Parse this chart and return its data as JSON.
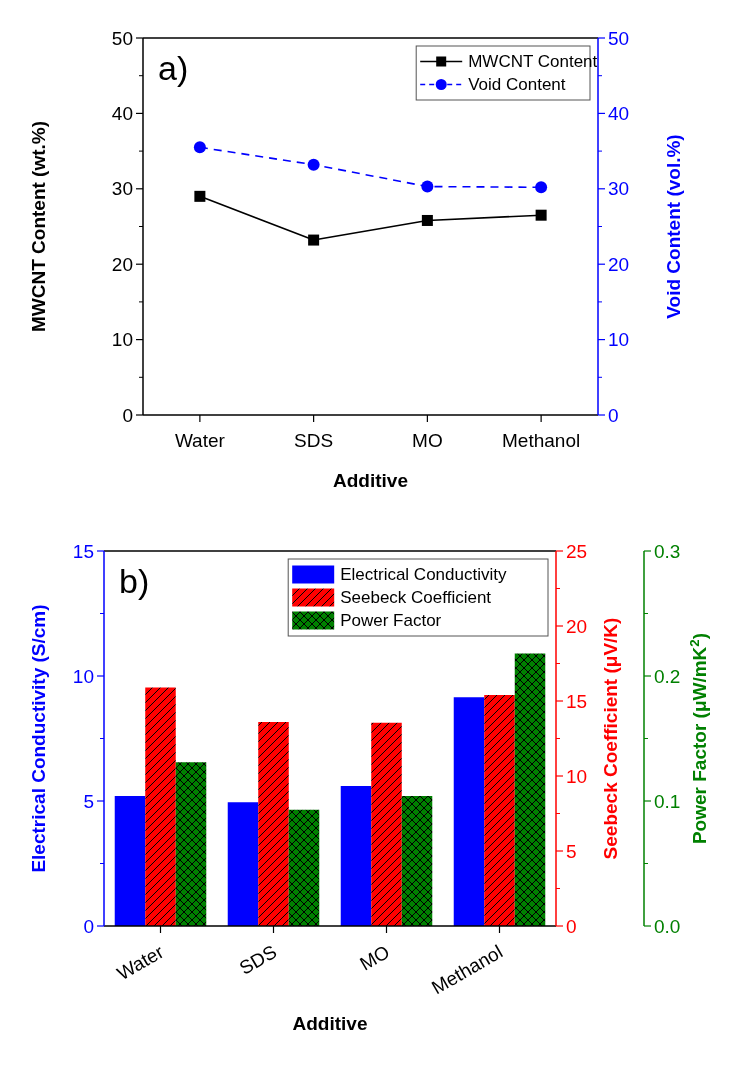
{
  "chart_data": [
    {
      "type": "line",
      "title": "a)",
      "categories": [
        "Water",
        "SDS",
        "MO",
        "Methanol"
      ],
      "xlabel": "Additive",
      "ylabel": "MWCNT Content (wt.%)",
      "y2label": "Void Content (vol.%)",
      "ylim": [
        0,
        50
      ],
      "yticks": [
        0,
        10,
        20,
        30,
        40,
        50
      ],
      "y2lim": [
        0,
        50
      ],
      "y2ticks": [
        0,
        10,
        20,
        30,
        40,
        50
      ],
      "legend": "top right",
      "series": [
        {
          "name": "MWCNT Content",
          "color": "#000000",
          "values": [
            29.0,
            23.2,
            25.8,
            26.5
          ],
          "marker": "square",
          "line_style": "solid"
        },
        {
          "name": "Void Content",
          "color": "#0000ff",
          "values": [
            35.5,
            33.2,
            30.3,
            30.2
          ],
          "marker": "circle",
          "line_style": "dashed",
          "axis": "y2"
        }
      ]
    },
    {
      "type": "bar",
      "title": "b)",
      "categories": [
        "Water",
        "SDS",
        "MO",
        "Methanol"
      ],
      "xlabel": "Additive",
      "ylabel": "Electrical Conductivity (S/cm)",
      "y2label": "Seebeck Coefficient (μV/K)",
      "y3label": "Power Factor (μW/mK$^{2}$)",
      "ylim": [
        0,
        15
      ],
      "yticks": [
        0,
        5,
        10,
        15
      ],
      "y2lim": [
        0,
        25
      ],
      "y2ticks": [
        0,
        5,
        10,
        15,
        20,
        25
      ],
      "y3lim": [
        0,
        0.3
      ],
      "y3ticks": [
        {
          "value": 0,
          "label": "0.0"
        },
        {
          "value": 0.1,
          "label": "0.1"
        },
        {
          "value": 0.2,
          "label": "0.2"
        },
        {
          "value": 0.3,
          "label": "0.3"
        }
      ],
      "legend": "top right",
      "series": [
        {
          "name": "Electrical Conductivity",
          "color": "#0000ff",
          "values": [
            5.2,
            4.95,
            5.6,
            9.15
          ]
        },
        {
          "name": "Seebeck Coefficient",
          "color": "#ff0000",
          "values": [
            15.9,
            13.6,
            13.55,
            15.4
          ],
          "axis": "y2"
        },
        {
          "name": "Power Factor",
          "color": "#008000",
          "values": [
            0.131,
            0.093,
            0.104,
            0.218
          ],
          "axis": "y3"
        }
      ]
    }
  ]
}
